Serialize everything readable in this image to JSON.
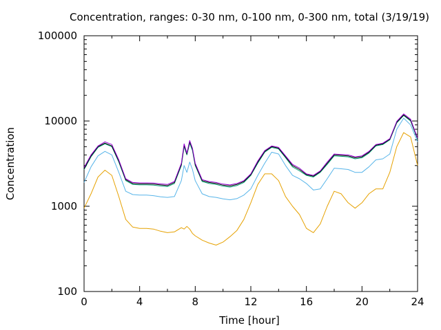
{
  "chart_data": {
    "type": "line",
    "title": "Concentration, ranges: 0-30 nm, 0-100 nm, 0-300 nm, total (3/19/19)",
    "xlabel": "Time [hour]",
    "ylabel": "Concentration",
    "xlim": [
      0,
      24
    ],
    "ylim": [
      100,
      100000
    ],
    "yscale": "log",
    "grid": false,
    "legend": "none",
    "x_ticks": [
      0,
      4,
      8,
      12,
      16,
      20,
      24
    ],
    "x_tick_labels": [
      "0",
      "4",
      "8",
      "12",
      "16",
      "20",
      "24"
    ],
    "y_ticks": [
      100,
      1000,
      10000,
      100000
    ],
    "y_tick_labels": [
      "100",
      "1000",
      "10000",
      "100000"
    ],
    "x": [
      0,
      0.5,
      1,
      1.5,
      2,
      2.5,
      3,
      3.5,
      4,
      4.5,
      5,
      5.5,
      6,
      6.5,
      7,
      7.2,
      7.4,
      7.6,
      7.8,
      8,
      8.5,
      9,
      9.5,
      10,
      10.5,
      11,
      11.5,
      12,
      12.5,
      13,
      13.5,
      14,
      14.5,
      15,
      15.5,
      16,
      16.5,
      17,
      17.5,
      18,
      18.5,
      19,
      19.5,
      20,
      20.5,
      21,
      21.5,
      22,
      22.5,
      23,
      23.5,
      24
    ],
    "series": [
      {
        "color": "#e6a100",
        "values": [
          950,
          1400,
          2200,
          2650,
          2300,
          1300,
          700,
          570,
          550,
          550,
          540,
          510,
          490,
          500,
          560,
          540,
          580,
          540,
          480,
          450,
          400,
          370,
          350,
          380,
          440,
          520,
          700,
          1100,
          1800,
          2400,
          2400,
          2000,
          1300,
          1000,
          800,
          550,
          490,
          620,
          1000,
          1500,
          1400,
          1100,
          950,
          1100,
          1400,
          1600,
          1600,
          2500,
          5000,
          7300,
          6500,
          3000
        ]
      },
      {
        "color": "#56b4e9",
        "values": [
          1900,
          2900,
          3900,
          4400,
          4000,
          2500,
          1500,
          1370,
          1350,
          1350,
          1330,
          1290,
          1270,
          1300,
          2000,
          3000,
          2500,
          3300,
          2700,
          2000,
          1400,
          1300,
          1270,
          1220,
          1190,
          1230,
          1350,
          1600,
          2300,
          3200,
          4300,
          4100,
          3000,
          2300,
          2100,
          1850,
          1550,
          1600,
          2100,
          2800,
          2750,
          2700,
          2500,
          2500,
          2900,
          3500,
          3600,
          4100,
          8000,
          10800,
          9000,
          5700
        ]
      },
      {
        "color": "#009e73",
        "values": [
          2700,
          3800,
          4900,
          5400,
          5000,
          3300,
          2000,
          1800,
          1780,
          1780,
          1770,
          1730,
          1700,
          1850,
          3000,
          5000,
          4000,
          5500,
          4500,
          3000,
          1950,
          1850,
          1800,
          1720,
          1680,
          1750,
          1900,
          2300,
          3200,
          4300,
          4900,
          4700,
          3700,
          2900,
          2600,
          2300,
          2200,
          2500,
          3100,
          3900,
          3850,
          3800,
          3600,
          3700,
          4200,
          5100,
          5300,
          6000,
          9500,
          11600,
          10000,
          6100
        ]
      },
      {
        "color": "#000000",
        "values": [
          2750,
          3900,
          5000,
          5500,
          5100,
          3400,
          2050,
          1850,
          1830,
          1830,
          1820,
          1780,
          1750,
          1900,
          3100,
          5200,
          4100,
          5700,
          4700,
          3100,
          2000,
          1900,
          1850,
          1770,
          1730,
          1800,
          1950,
          2350,
          3300,
          4400,
          5000,
          4800,
          3800,
          3000,
          2700,
          2350,
          2250,
          2550,
          3200,
          4000,
          3950,
          3900,
          3700,
          3800,
          4300,
          5200,
          5400,
          6100,
          9700,
          11800,
          10200,
          6200
        ]
      },
      {
        "color": "#9400d3",
        "values": [
          2850,
          4000,
          5100,
          5700,
          5300,
          3500,
          2100,
          1900,
          1880,
          1880,
          1870,
          1830,
          1800,
          1950,
          3200,
          5400,
          4200,
          5900,
          4800,
          3200,
          2050,
          1950,
          1900,
          1820,
          1780,
          1850,
          2000,
          2400,
          3400,
          4500,
          5100,
          4900,
          3900,
          3100,
          2800,
          2400,
          2300,
          2600,
          3300,
          4100,
          4050,
          4000,
          3800,
          3900,
          4400,
          5300,
          5500,
          6200,
          9900,
          12100,
          10500,
          6300
        ]
      }
    ]
  }
}
